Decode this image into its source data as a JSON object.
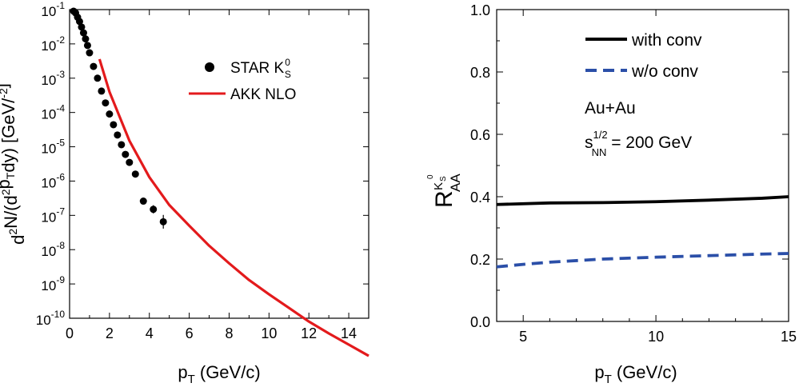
{
  "chart_data": [
    {
      "type": "scatter",
      "xlabel_main": "p",
      "xlabel_sub": "T",
      "xlabel_rest": " (GeV/c)",
      "ylabel_parts": [
        {
          "t": "d",
          "s": "n"
        },
        {
          "t": "2",
          "s": "sup"
        },
        {
          "t": "N/(d",
          "s": "n"
        },
        {
          "t": "2",
          "s": "sup"
        },
        {
          "t": "p",
          "s": "n"
        },
        {
          "t": "T",
          "s": "sub"
        },
        {
          "t": "dy) [GeV/",
          "s": "n"
        },
        {
          "t": "-2",
          "s": "sup"
        },
        {
          "t": "]",
          "s": "n"
        }
      ],
      "xlim": [
        0,
        15
      ],
      "ylim_log10": [
        -10,
        -1
      ],
      "log_y": true,
      "xticks": [
        {
          "v": 0,
          "label": "0"
        },
        {
          "v": 2,
          "label": "2"
        },
        {
          "v": 4,
          "label": "4"
        },
        {
          "v": 6,
          "label": "6"
        },
        {
          "v": 8,
          "label": "8"
        },
        {
          "v": 10,
          "label": "10"
        },
        {
          "v": 12,
          "label": "12"
        },
        {
          "v": 14,
          "label": "14"
        }
      ],
      "yticks": [
        {
          "exp": -1,
          "base": "10",
          "sup": "-1"
        },
        {
          "exp": -2,
          "base": "10",
          "sup": "-2"
        },
        {
          "exp": -3,
          "base": "10",
          "sup": "-3"
        },
        {
          "exp": -4,
          "base": "10",
          "sup": "-4"
        },
        {
          "exp": -5,
          "base": "10",
          "sup": "-5"
        },
        {
          "exp": -6,
          "base": "10",
          "sup": "-6"
        },
        {
          "exp": -7,
          "base": "10",
          "sup": "-7"
        },
        {
          "exp": -8,
          "base": "10",
          "sup": "-8"
        },
        {
          "exp": -9,
          "base": "10",
          "sup": "-9"
        },
        {
          "exp": -10,
          "base": "10",
          "sup": "-10"
        }
      ],
      "legend": {
        "position": "top-right",
        "points_label_main": "STAR K",
        "points_label_sub": "S",
        "points_label_sup": "0",
        "line_label": "AKK NLO"
      },
      "colors": {
        "points": "#000000",
        "line": "#e31a1c"
      },
      "series": [
        {
          "kind": "points",
          "x": [
            0.2,
            0.3,
            0.4,
            0.5,
            0.6,
            0.7,
            0.8,
            0.9,
            1.0,
            1.2,
            1.4,
            1.6,
            1.8,
            2.0,
            2.2,
            2.4,
            2.6,
            2.8,
            3.0,
            3.3,
            3.7,
            4.2,
            4.7
          ],
          "y": [
            0.09,
            0.08,
            0.06,
            0.045,
            0.031,
            0.021,
            0.014,
            0.009,
            0.0055,
            0.0022,
            0.001,
            0.00042,
            0.00019,
            9e-05,
            4.4e-05,
            2.2e-05,
            1.15e-05,
            6e-06,
            3.5e-06,
            1.6e-06,
            2.6e-07,
            1.5e-07,
            6.5e-08
          ],
          "yerr_log10": [
            0,
            0,
            0,
            0,
            0,
            0,
            0,
            0,
            0,
            0,
            0,
            0,
            0,
            0,
            0,
            0,
            0,
            0,
            0,
            0,
            0.08,
            0.12,
            0.2
          ]
        },
        {
          "kind": "line",
          "x": [
            1.5,
            2,
            3,
            4,
            5,
            6,
            7,
            8,
            9,
            10,
            11,
            12,
            13,
            14,
            15
          ],
          "y": [
            0.0036,
            0.0004,
            1.5e-05,
            1.3e-06,
            2e-07,
            5e-08,
            1.3e-08,
            4e-09,
            1.3e-09,
            5e-10,
            2e-10,
            8e-11,
            3.6e-11,
            1.7e-11,
            8e-12
          ]
        }
      ]
    },
    {
      "type": "line",
      "xlabel_main": "p",
      "xlabel_sub": "T",
      "xlabel_rest": " (GeV/c)",
      "ylabel_main": "R",
      "ylabel_sub": "AA",
      "ylabel_sup_main": "K",
      "ylabel_sup_sub": "S",
      "ylabel_sup_sup": "0",
      "xlim": [
        4,
        15
      ],
      "ylim": [
        0,
        1.0
      ],
      "xticks": [
        {
          "v": 5,
          "label": "5"
        },
        {
          "v": 10,
          "label": "10"
        },
        {
          "v": 15,
          "label": "15"
        }
      ],
      "yticks": [
        {
          "v": 0.0,
          "label": "0.0"
        },
        {
          "v": 0.2,
          "label": "0.2"
        },
        {
          "v": 0.4,
          "label": "0.4"
        },
        {
          "v": 0.6,
          "label": "0.6"
        },
        {
          "v": 0.8,
          "label": "0.8"
        },
        {
          "v": 1.0,
          "label": "1.0"
        }
      ],
      "legend": {
        "position": "top-right"
      },
      "annotations": {
        "system": "Au+Au",
        "energy_main": "s",
        "energy_sub": "NN",
        "energy_sup": "1/2",
        "energy_rest": " = 200 GeV"
      },
      "series": [
        {
          "name": "with conv",
          "style": "solid",
          "color": "#000000",
          "x": [
            4,
            6,
            8,
            10,
            12,
            14,
            15
          ],
          "y": [
            0.375,
            0.38,
            0.381,
            0.384,
            0.389,
            0.395,
            0.4
          ]
        },
        {
          "name": "w/o conv",
          "style": "dashed",
          "color": "#2b4fa8",
          "x": [
            4,
            5,
            6,
            7,
            8,
            10,
            12,
            14,
            15
          ],
          "y": [
            0.175,
            0.183,
            0.19,
            0.195,
            0.2,
            0.206,
            0.211,
            0.216,
            0.218
          ]
        }
      ]
    }
  ]
}
